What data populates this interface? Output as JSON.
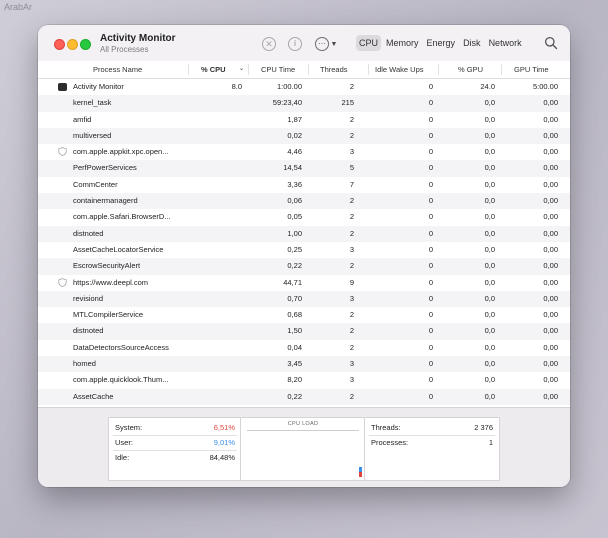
{
  "watermark": "ArabAr",
  "window": {
    "title": "Activity Monitor",
    "subtitle": "All Processes"
  },
  "toolbar": {
    "stop_icon": "stop-icon",
    "info_icon": "info-icon",
    "more_icon": "more-icon",
    "tabs": [
      {
        "label": "CPU",
        "active": true
      },
      {
        "label": "Memory",
        "active": false
      },
      {
        "label": "Energy",
        "active": false
      },
      {
        "label": "Disk",
        "active": false
      },
      {
        "label": "Network",
        "active": false
      }
    ]
  },
  "columns": {
    "name": "Process Name",
    "cpu": "% CPU",
    "cpu_time": "CPU Time",
    "threads": "Threads",
    "idle": "Idle Wake Ups",
    "gpu": "% GPU",
    "gpu_time": "GPU Time"
  },
  "processes": [
    {
      "icon": "activity-monitor-icon",
      "name": "Activity Monitor",
      "cpu": "8.0",
      "cpu_time": "1:00.00",
      "threads": "2",
      "idle": "0",
      "gpu": "24.0",
      "gpu_time": "5:00.00"
    },
    {
      "icon": "",
      "name": "kernel_task",
      "cpu": "",
      "cpu_time": "59:23,40",
      "threads": "215",
      "idle": "0",
      "gpu": "0,0",
      "gpu_time": "0,00"
    },
    {
      "icon": "",
      "name": "amfid",
      "cpu": "",
      "cpu_time": "1,87",
      "threads": "2",
      "idle": "0",
      "gpu": "0,0",
      "gpu_time": "0,00"
    },
    {
      "icon": "",
      "name": "multiversed",
      "cpu": "",
      "cpu_time": "0,02",
      "threads": "2",
      "idle": "0",
      "gpu": "0,0",
      "gpu_time": "0,00"
    },
    {
      "icon": "shield-icon",
      "name": "com.apple.appkit.xpc.open...",
      "cpu": "",
      "cpu_time": "4,46",
      "threads": "3",
      "idle": "0",
      "gpu": "0,0",
      "gpu_time": "0,00"
    },
    {
      "icon": "",
      "name": "PerfPowerServices",
      "cpu": "",
      "cpu_time": "14,54",
      "threads": "5",
      "idle": "0",
      "gpu": "0,0",
      "gpu_time": "0,00"
    },
    {
      "icon": "",
      "name": "CommCenter",
      "cpu": "",
      "cpu_time": "3,36",
      "threads": "7",
      "idle": "0",
      "gpu": "0,0",
      "gpu_time": "0,00"
    },
    {
      "icon": "",
      "name": "containermanagerd",
      "cpu": "",
      "cpu_time": "0,06",
      "threads": "2",
      "idle": "0",
      "gpu": "0,0",
      "gpu_time": "0,00"
    },
    {
      "icon": "",
      "name": "com.apple.Safari.BrowserD...",
      "cpu": "",
      "cpu_time": "0,05",
      "threads": "2",
      "idle": "0",
      "gpu": "0,0",
      "gpu_time": "0,00"
    },
    {
      "icon": "",
      "name": "distnoted",
      "cpu": "",
      "cpu_time": "1,00",
      "threads": "2",
      "idle": "0",
      "gpu": "0,0",
      "gpu_time": "0,00"
    },
    {
      "icon": "",
      "name": "AssetCacheLocatorService",
      "cpu": "",
      "cpu_time": "0,25",
      "threads": "3",
      "idle": "0",
      "gpu": "0,0",
      "gpu_time": "0,00"
    },
    {
      "icon": "",
      "name": "EscrowSecurityAlert",
      "cpu": "",
      "cpu_time": "0,22",
      "threads": "2",
      "idle": "0",
      "gpu": "0,0",
      "gpu_time": "0,00"
    },
    {
      "icon": "shield-icon",
      "name": "https://www.deepl.com",
      "cpu": "",
      "cpu_time": "44,71",
      "threads": "9",
      "idle": "0",
      "gpu": "0,0",
      "gpu_time": "0,00"
    },
    {
      "icon": "",
      "name": "revisiond",
      "cpu": "",
      "cpu_time": "0,70",
      "threads": "3",
      "idle": "0",
      "gpu": "0,0",
      "gpu_time": "0,00"
    },
    {
      "icon": "",
      "name": "MTLCompilerService",
      "cpu": "",
      "cpu_time": "0,68",
      "threads": "2",
      "idle": "0",
      "gpu": "0,0",
      "gpu_time": "0,00"
    },
    {
      "icon": "",
      "name": "distnoted",
      "cpu": "",
      "cpu_time": "1,50",
      "threads": "2",
      "idle": "0",
      "gpu": "0,0",
      "gpu_time": "0,00"
    },
    {
      "icon": "",
      "name": "DataDetectorsSourceAccess",
      "cpu": "",
      "cpu_time": "0,04",
      "threads": "2",
      "idle": "0",
      "gpu": "0,0",
      "gpu_time": "0,00"
    },
    {
      "icon": "",
      "name": "homed",
      "cpu": "",
      "cpu_time": "3,45",
      "threads": "3",
      "idle": "0",
      "gpu": "0,0",
      "gpu_time": "0,00"
    },
    {
      "icon": "",
      "name": "com.apple.quicklook.Thum...",
      "cpu": "",
      "cpu_time": "8,20",
      "threads": "3",
      "idle": "0",
      "gpu": "0,0",
      "gpu_time": "0,00"
    },
    {
      "icon": "",
      "name": "AssetCache",
      "cpu": "",
      "cpu_time": "0,22",
      "threads": "2",
      "idle": "0",
      "gpu": "0,0",
      "gpu_time": "0,00"
    }
  ],
  "summary": {
    "system_label": "System:",
    "system_value": "6,51%",
    "user_label": "User:",
    "user_value": "9,01%",
    "idle_label": "Idle:",
    "idle_value": "84,48%",
    "cpu_load_label": "CPU LOAD",
    "threads_label": "Threads:",
    "threads_value": "2 376",
    "processes_label": "Processes:",
    "processes_value": "1"
  },
  "colors": {
    "system": "#e0453c",
    "user": "#3a8ee6"
  }
}
